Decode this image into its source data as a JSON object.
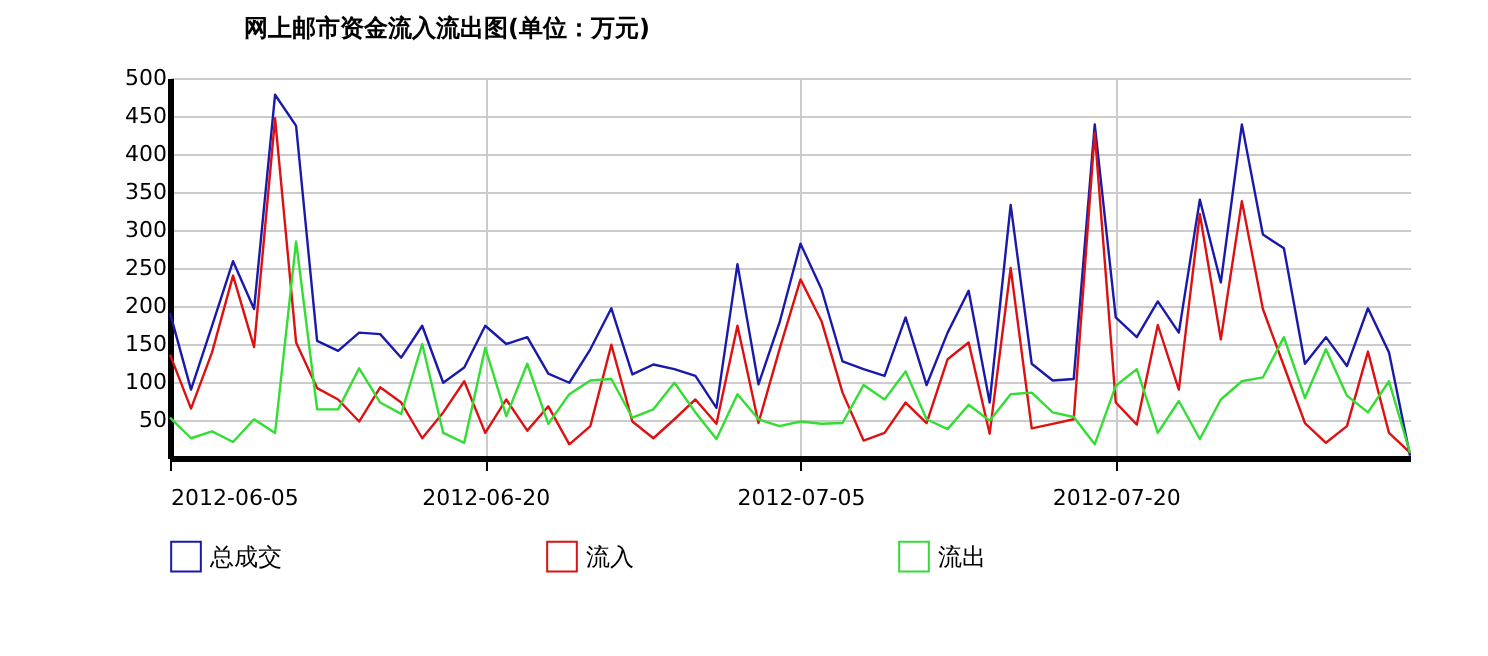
{
  "chart_data": {
    "type": "line",
    "title": "网上邮市资金流入流出图(单位：万元)",
    "x": [
      "2012-06-05",
      "2012-06-06",
      "2012-06-07",
      "2012-06-08",
      "2012-06-09",
      "2012-06-10",
      "2012-06-11",
      "2012-06-12",
      "2012-06-13",
      "2012-06-14",
      "2012-06-15",
      "2012-06-16",
      "2012-06-17",
      "2012-06-18",
      "2012-06-19",
      "2012-06-20",
      "2012-06-21",
      "2012-06-22",
      "2012-06-23",
      "2012-06-24",
      "2012-06-25",
      "2012-06-26",
      "2012-06-27",
      "2012-06-28",
      "2012-06-29",
      "2012-06-30",
      "2012-07-01",
      "2012-07-02",
      "2012-07-03",
      "2012-07-04",
      "2012-07-05",
      "2012-07-06",
      "2012-07-07",
      "2012-07-08",
      "2012-07-09",
      "2012-07-10",
      "2012-07-11",
      "2012-07-12",
      "2012-07-13",
      "2012-07-14",
      "2012-07-15",
      "2012-07-16",
      "2012-07-17",
      "2012-07-18",
      "2012-07-19",
      "2012-07-20",
      "2012-07-21",
      "2012-07-22",
      "2012-07-23",
      "2012-07-24",
      "2012-07-25",
      "2012-07-26",
      "2012-07-27",
      "2012-07-28",
      "2012-07-29",
      "2012-07-30",
      "2012-07-31",
      "2012-08-01",
      "2012-08-02",
      "2012-08-03"
    ],
    "series": [
      {
        "name": "总成交",
        "color": "#1a1aaa",
        "values": [
          191,
          90,
          174,
          259,
          196,
          478,
          437,
          154,
          141,
          165,
          163,
          132,
          174,
          99,
          119,
          174,
          150,
          159,
          111,
          99,
          143,
          197,
          110,
          123,
          117,
          108,
          66,
          255,
          97,
          178,
          282,
          222,
          127,
          117,
          108,
          185,
          96,
          165,
          220,
          73,
          333,
          124,
          102,
          104,
          439,
          185,
          159,
          206,
          165,
          340,
          231,
          439,
          294,
          276,
          124,
          159,
          121,
          197,
          139,
          3
        ]
      },
      {
        "name": "流入",
        "color": "#dd1111",
        "values": [
          136,
          65,
          139,
          240,
          146,
          447,
          152,
          92,
          77,
          48,
          93,
          73,
          26,
          60,
          101,
          33,
          77,
          36,
          68,
          18,
          42,
          149,
          48,
          26,
          51,
          77,
          45,
          174,
          46,
          143,
          235,
          180,
          86,
          23,
          33,
          73,
          46,
          130,
          152,
          32,
          250,
          39,
          45,
          51,
          428,
          73,
          44,
          175,
          90,
          321,
          156,
          338,
          196,
          121,
          46,
          20,
          42,
          140,
          33,
          7
        ]
      },
      {
        "name": "流出",
        "color": "#33dd33",
        "values": [
          53,
          26,
          35,
          21,
          51,
          33,
          285,
          64,
          64,
          118,
          73,
          58,
          150,
          33,
          20,
          145,
          55,
          124,
          45,
          84,
          102,
          104,
          53,
          64,
          99,
          60,
          25,
          84,
          51,
          42,
          48,
          45,
          46,
          96,
          77,
          114,
          51,
          38,
          70,
          49,
          84,
          86,
          60,
          54,
          18,
          95,
          117,
          33,
          75,
          25,
          77,
          101,
          106,
          159,
          79,
          143,
          82,
          60,
          101,
          7
        ]
      }
    ],
    "xlim": [
      "2012-06-05",
      "2012-08-03"
    ],
    "xticks": [
      "2012-06-05",
      "2012-06-20",
      "2012-07-05",
      "2012-07-20"
    ],
    "ylim": [
      0,
      500
    ],
    "yticks": [
      50,
      100,
      150,
      200,
      250,
      300,
      350,
      400,
      450,
      500
    ],
    "grid": true,
    "legend": "bottom",
    "marker": "none",
    "line_style": "solid"
  }
}
